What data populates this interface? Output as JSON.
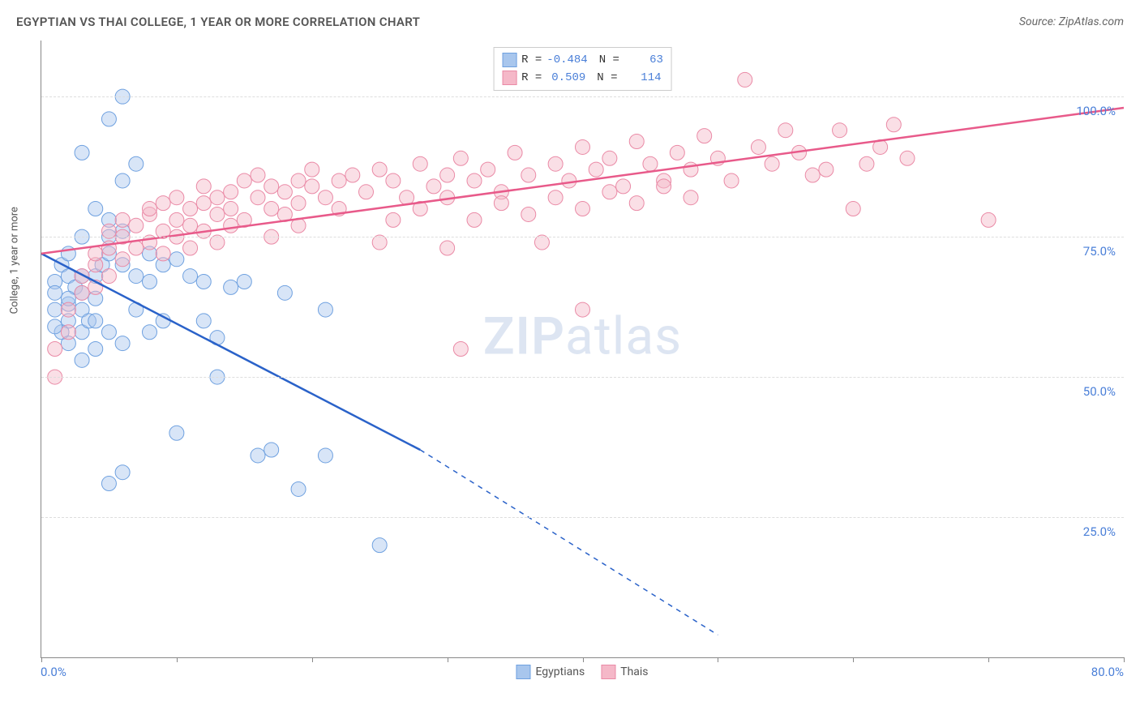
{
  "title": "EGYPTIAN VS THAI COLLEGE, 1 YEAR OR MORE CORRELATION CHART",
  "source": "Source: ZipAtlas.com",
  "watermark_a": "ZIP",
  "watermark_b": "atlas",
  "y_axis_label": "College, 1 year or more",
  "chart": {
    "type": "scatter",
    "background_color": "#ffffff",
    "grid_color": "#dddddd",
    "axis_color": "#888888",
    "tick_label_color": "#4a7fd8",
    "xlim": [
      0,
      80
    ],
    "ylim": [
      0,
      110
    ],
    "x_ticks": [
      0,
      10,
      20,
      30,
      40,
      50,
      60,
      70,
      80
    ],
    "x_tick_labels": {
      "0": "0.0%",
      "80": "80.0%"
    },
    "y_ticks": [
      25,
      50,
      75,
      100
    ],
    "y_tick_labels": {
      "25": "25.0%",
      "50": "50.0%",
      "75": "75.0%",
      "100": "100.0%"
    },
    "marker_radius": 9,
    "marker_opacity": 0.45,
    "line_width": 2.5,
    "series": [
      {
        "name": "Egyptians",
        "marker_fill": "#a8c6ed",
        "marker_stroke": "#6fa1e0",
        "line_color": "#2a62c9",
        "R": "-0.484",
        "N": "63",
        "trend_start": [
          0,
          72
        ],
        "trend_solid_end": [
          28,
          37
        ],
        "trend_dash_end": [
          50,
          4
        ],
        "points": [
          [
            1,
            67
          ],
          [
            1,
            65
          ],
          [
            1.5,
            70
          ],
          [
            2,
            68
          ],
          [
            2,
            63
          ],
          [
            2.5,
            66
          ],
          [
            2,
            60
          ],
          [
            3,
            65
          ],
          [
            3,
            62
          ],
          [
            1.5,
            58
          ],
          [
            2,
            56
          ],
          [
            3,
            58
          ],
          [
            3.5,
            60
          ],
          [
            4,
            64
          ],
          [
            4,
            68
          ],
          [
            4.5,
            70
          ],
          [
            5,
            72
          ],
          [
            5,
            75
          ],
          [
            5,
            78
          ],
          [
            4,
            80
          ],
          [
            6,
            85
          ],
          [
            6,
            100
          ],
          [
            5,
            96
          ],
          [
            3,
            90
          ],
          [
            7,
            88
          ],
          [
            6,
            76
          ],
          [
            6,
            70
          ],
          [
            7,
            68
          ],
          [
            8,
            67
          ],
          [
            8,
            72
          ],
          [
            9,
            70
          ],
          [
            10,
            71
          ],
          [
            11,
            68
          ],
          [
            12,
            60
          ],
          [
            12,
            67
          ],
          [
            13,
            57
          ],
          [
            14,
            66
          ],
          [
            15,
            67
          ],
          [
            18,
            65
          ],
          [
            10,
            40
          ],
          [
            13,
            50
          ],
          [
            16,
            36
          ],
          [
            17,
            37
          ],
          [
            19,
            30
          ],
          [
            21,
            36
          ],
          [
            21,
            62
          ],
          [
            5,
            31
          ],
          [
            6,
            33
          ],
          [
            4,
            55
          ],
          [
            3,
            53
          ],
          [
            1,
            62
          ],
          [
            1,
            59
          ],
          [
            2,
            72
          ],
          [
            3,
            75
          ],
          [
            4,
            60
          ],
          [
            5,
            58
          ],
          [
            6,
            56
          ],
          [
            7,
            62
          ],
          [
            8,
            58
          ],
          [
            9,
            60
          ],
          [
            25,
            20
          ],
          [
            3,
            68
          ],
          [
            2,
            64
          ]
        ]
      },
      {
        "name": "Thais",
        "marker_fill": "#f5b8c8",
        "marker_stroke": "#ea8aa6",
        "line_color": "#e85a8a",
        "R": "0.509",
        "N": "114",
        "trend_start": [
          0,
          72
        ],
        "trend_solid_end": [
          80,
          98
        ],
        "trend_dash_end": null,
        "points": [
          [
            1,
            50
          ],
          [
            1,
            55
          ],
          [
            2,
            58
          ],
          [
            2,
            62
          ],
          [
            3,
            65
          ],
          [
            3,
            68
          ],
          [
            4,
            70
          ],
          [
            4,
            72
          ],
          [
            5,
            73
          ],
          [
            5,
            76
          ],
          [
            6,
            75
          ],
          [
            6,
            78
          ],
          [
            7,
            73
          ],
          [
            7,
            77
          ],
          [
            8,
            79
          ],
          [
            8,
            80
          ],
          [
            9,
            76
          ],
          [
            9,
            81
          ],
          [
            10,
            78
          ],
          [
            10,
            82
          ],
          [
            11,
            80
          ],
          [
            11,
            77
          ],
          [
            12,
            81
          ],
          [
            12,
            84
          ],
          [
            13,
            79
          ],
          [
            13,
            82
          ],
          [
            14,
            80
          ],
          [
            14,
            83
          ],
          [
            15,
            85
          ],
          [
            15,
            78
          ],
          [
            16,
            82
          ],
          [
            16,
            86
          ],
          [
            17,
            80
          ],
          [
            17,
            84
          ],
          [
            18,
            83
          ],
          [
            18,
            79
          ],
          [
            19,
            85
          ],
          [
            19,
            81
          ],
          [
            20,
            84
          ],
          [
            20,
            87
          ],
          [
            21,
            82
          ],
          [
            22,
            85
          ],
          [
            22,
            80
          ],
          [
            23,
            86
          ],
          [
            24,
            83
          ],
          [
            25,
            87
          ],
          [
            25,
            74
          ],
          [
            26,
            85
          ],
          [
            27,
            82
          ],
          [
            28,
            88
          ],
          [
            29,
            84
          ],
          [
            30,
            86
          ],
          [
            30,
            73
          ],
          [
            31,
            89
          ],
          [
            32,
            85
          ],
          [
            33,
            87
          ],
          [
            34,
            83
          ],
          [
            35,
            90
          ],
          [
            36,
            86
          ],
          [
            37,
            74
          ],
          [
            38,
            88
          ],
          [
            39,
            85
          ],
          [
            40,
            91
          ],
          [
            40,
            62
          ],
          [
            41,
            87
          ],
          [
            42,
            89
          ],
          [
            43,
            84
          ],
          [
            44,
            92
          ],
          [
            45,
            88
          ],
          [
            46,
            85
          ],
          [
            47,
            90
          ],
          [
            48,
            87
          ],
          [
            49,
            93
          ],
          [
            50,
            89
          ],
          [
            51,
            85
          ],
          [
            52,
            103
          ],
          [
            53,
            91
          ],
          [
            54,
            88
          ],
          [
            55,
            94
          ],
          [
            56,
            90
          ],
          [
            57,
            86
          ],
          [
            58,
            87
          ],
          [
            59,
            94
          ],
          [
            60,
            80
          ],
          [
            61,
            88
          ],
          [
            62,
            91
          ],
          [
            63,
            95
          ],
          [
            64,
            89
          ],
          [
            70,
            78
          ],
          [
            31,
            55
          ],
          [
            8,
            74
          ],
          [
            9,
            72
          ],
          [
            10,
            75
          ],
          [
            11,
            73
          ],
          [
            12,
            76
          ],
          [
            13,
            74
          ],
          [
            14,
            77
          ],
          [
            4,
            66
          ],
          [
            5,
            68
          ],
          [
            6,
            71
          ],
          [
            26,
            78
          ],
          [
            28,
            80
          ],
          [
            30,
            82
          ],
          [
            32,
            78
          ],
          [
            34,
            81
          ],
          [
            36,
            79
          ],
          [
            38,
            82
          ],
          [
            40,
            80
          ],
          [
            42,
            83
          ],
          [
            44,
            81
          ],
          [
            46,
            84
          ],
          [
            48,
            82
          ],
          [
            17,
            75
          ],
          [
            19,
            77
          ]
        ]
      }
    ]
  },
  "legend_top_label_R": "R =",
  "legend_top_label_N": "N =",
  "legend_bottom": [
    {
      "label": "Egyptians",
      "fill": "#a8c6ed",
      "stroke": "#6fa1e0"
    },
    {
      "label": "Thais",
      "fill": "#f5b8c8",
      "stroke": "#ea8aa6"
    }
  ]
}
